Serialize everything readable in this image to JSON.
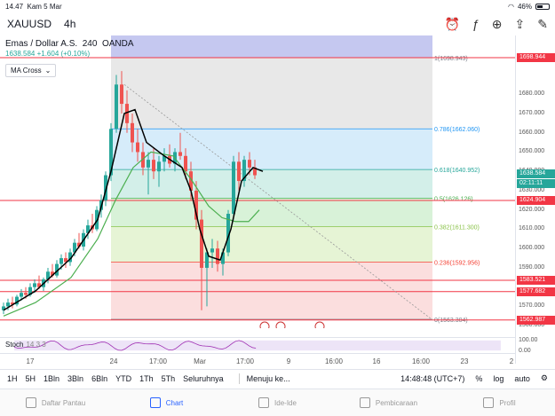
{
  "status_bar": {
    "time": "14.47",
    "date": "Kam 5 Mar",
    "battery": "46%"
  },
  "header": {
    "symbol": "XAUUSD",
    "timeframe": "4h"
  },
  "legend": {
    "title": "Emas / Dollar A.S.",
    "interval": "240",
    "source": "OANDA",
    "price_line": "1638.584 +1.604 (+0.10%)",
    "indicator": "MA Cross"
  },
  "fib_levels": [
    {
      "label": "1(1698.943)",
      "color": "#787b86"
    },
    {
      "label": "0.786(1662.060)",
      "color": "#2196f3"
    },
    {
      "label": "0.618(1640.952)",
      "color": "#26a69a"
    },
    {
      "label": "0.5(1626.126)",
      "color": "#4caf50"
    },
    {
      "label": "0.382(1611.300)",
      "color": "#8bc34a"
    },
    {
      "label": "0.236(1592.956)",
      "color": "#f44336"
    },
    {
      "label": "0(1563.304)",
      "color": "#787b86"
    }
  ],
  "price_axis": {
    "ticks": [
      "1680.000",
      "1670.000",
      "1660.000",
      "1650.000",
      "1640.000",
      "1630.000",
      "1620.000",
      "1610.000",
      "1600.000",
      "1590.000",
      "1570.000",
      "1560.000"
    ],
    "tags": [
      {
        "label": "1698.944",
        "color": "#f23645"
      },
      {
        "label": "1638.584",
        "color": "#26a69a"
      },
      {
        "label": "02:11:11",
        "color": "#26a69a"
      },
      {
        "label": "1624.904",
        "color": "#f23645"
      },
      {
        "label": "1583.521",
        "color": "#f23645"
      },
      {
        "label": "1577.682",
        "color": "#f23645"
      },
      {
        "label": "1562.987",
        "color": "#f23645"
      }
    ],
    "stoch_ticks": [
      "100.00",
      "0.00"
    ]
  },
  "stoch": {
    "name": "Stoch",
    "params": "14 3 3"
  },
  "time_axis": [
    "17",
    "24",
    "17:00",
    "Mar",
    "17:00",
    "9",
    "16:00",
    "16",
    "16:00",
    "23",
    "2"
  ],
  "toolbar": {
    "timeframes": [
      "1H",
      "5H",
      "1Bln",
      "3Bln",
      "6Bln",
      "YTD",
      "1Th",
      "5Th",
      "Seluruhnya"
    ],
    "goto": "Menuju ke...",
    "clock": "14:48:48 (UTC+7)",
    "percent": "%",
    "log": "log",
    "auto": "auto"
  },
  "bottom_nav": [
    {
      "label": "Daftar Pantau",
      "active": false
    },
    {
      "label": "Chart",
      "active": true
    },
    {
      "label": "Ide-Ide",
      "active": false
    },
    {
      "label": "Pembicaraan",
      "active": false
    },
    {
      "label": "Profil",
      "active": false
    }
  ],
  "colors": {
    "bull": "#26a69a",
    "bear": "#ef5350",
    "hline": "#f23645",
    "ma_fast": "#000000",
    "ma_slow": "#4caf50",
    "stoch": "#9c27b0"
  }
}
